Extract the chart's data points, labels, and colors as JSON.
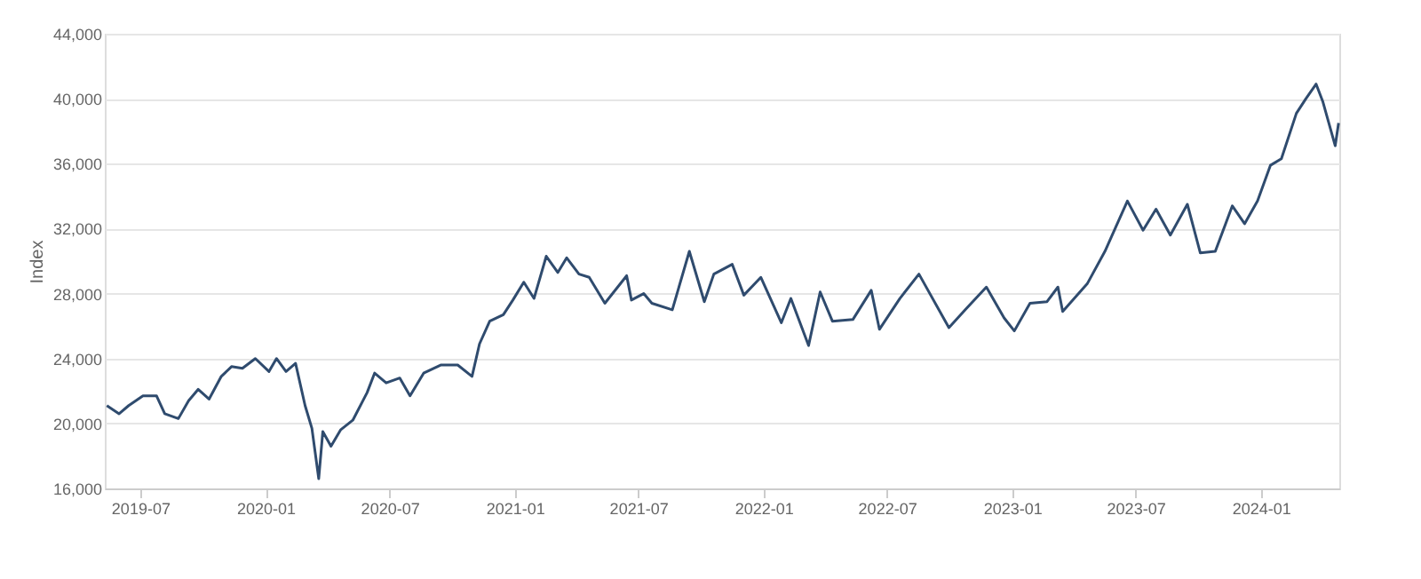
{
  "chart_data": {
    "type": "line",
    "ylabel": "Index",
    "grid": "y",
    "marker": "none",
    "line_style": "solid",
    "xlim": [
      "2019-05-10",
      "2024-04-25"
    ],
    "xticks": [
      "2019-07",
      "2020-01",
      "2020-07",
      "2021-01",
      "2021-07",
      "2022-01",
      "2022-07",
      "2023-01",
      "2023-07",
      "2024-01"
    ],
    "ylim": [
      16000,
      44000
    ],
    "yticks": [
      {
        "value": 16000,
        "label": "16,000"
      },
      {
        "value": 20000,
        "label": "20,000"
      },
      {
        "value": 24000,
        "label": "24,000"
      },
      {
        "value": 28000,
        "label": "28,000"
      },
      {
        "value": 32000,
        "label": "32,000"
      },
      {
        "value": 36000,
        "label": "36,000"
      },
      {
        "value": 40000,
        "label": "40,000"
      },
      {
        "value": 44000,
        "label": "44,000"
      }
    ],
    "x": [
      "2019-05-13",
      "2019-05-31",
      "2019-06-14",
      "2019-07-05",
      "2019-07-25",
      "2019-08-06",
      "2019-08-26",
      "2019-09-10",
      "2019-09-24",
      "2019-10-10",
      "2019-10-28",
      "2019-11-12",
      "2019-11-28",
      "2019-12-17",
      "2020-01-06",
      "2020-01-17",
      "2020-01-31",
      "2020-02-14",
      "2020-02-28",
      "2020-03-09",
      "2020-03-19",
      "2020-03-25",
      "2020-04-06",
      "2020-04-20",
      "2020-05-08",
      "2020-05-29",
      "2020-06-09",
      "2020-06-26",
      "2020-07-16",
      "2020-07-31",
      "2020-08-20",
      "2020-09-14",
      "2020-10-09",
      "2020-10-30",
      "2020-11-10",
      "2020-11-25",
      "2020-12-15",
      "2020-12-29",
      "2021-01-14",
      "2021-01-29",
      "2021-02-16",
      "2021-03-05",
      "2021-03-18",
      "2021-04-05",
      "2021-04-20",
      "2021-05-13",
      "2021-06-14",
      "2021-06-21",
      "2021-07-09",
      "2021-07-21",
      "2021-08-20",
      "2021-09-14",
      "2021-10-06",
      "2021-10-20",
      "2021-11-16",
      "2021-12-03",
      "2021-12-28",
      "2022-01-27",
      "2022-02-10",
      "2022-03-08",
      "2022-03-25",
      "2022-04-12",
      "2022-05-12",
      "2022-06-08",
      "2022-06-20",
      "2022-07-20",
      "2022-08-17",
      "2022-09-30",
      "2022-10-24",
      "2022-11-24",
      "2022-12-20",
      "2023-01-04",
      "2023-01-27",
      "2023-02-21",
      "2023-03-09",
      "2023-03-16",
      "2023-04-21",
      "2023-05-17",
      "2023-06-19",
      "2023-07-12",
      "2023-07-31",
      "2023-08-21",
      "2023-09-15",
      "2023-10-04",
      "2023-10-26",
      "2023-11-20",
      "2023-12-08",
      "2023-12-27",
      "2024-01-15",
      "2024-01-31",
      "2024-02-22",
      "2024-03-07",
      "2024-03-22",
      "2024-04-01",
      "2024-04-19",
      "2024-04-24"
    ],
    "series": [
      {
        "color": "#2f4b6e",
        "values": [
          21100,
          20600,
          21100,
          21700,
          21700,
          20600,
          20300,
          21400,
          22100,
          21500,
          22900,
          23500,
          23400,
          24000,
          23200,
          24000,
          23200,
          23700,
          21100,
          19700,
          16600,
          19500,
          18600,
          19600,
          20200,
          21900,
          23100,
          22500,
          22800,
          21700,
          23100,
          23600,
          23600,
          22900,
          24900,
          26300,
          26700,
          27600,
          28700,
          27700,
          30300,
          29300,
          30200,
          29200,
          29000,
          27400,
          29100,
          27600,
          28000,
          27400,
          27000,
          30600,
          27500,
          29200,
          29800,
          27900,
          29000,
          26200,
          27700,
          24800,
          28100,
          26300,
          26400,
          28200,
          25800,
          27700,
          29200,
          25900,
          27000,
          28400,
          26500,
          25700,
          27400,
          27500,
          28400,
          26900,
          28600,
          30600,
          33700,
          31900,
          33200,
          31600,
          33500,
          30500,
          30600,
          33400,
          32300,
          33700,
          35900,
          36300,
          39100,
          40000,
          40900,
          39800,
          37100,
          38500
        ]
      }
    ]
  }
}
